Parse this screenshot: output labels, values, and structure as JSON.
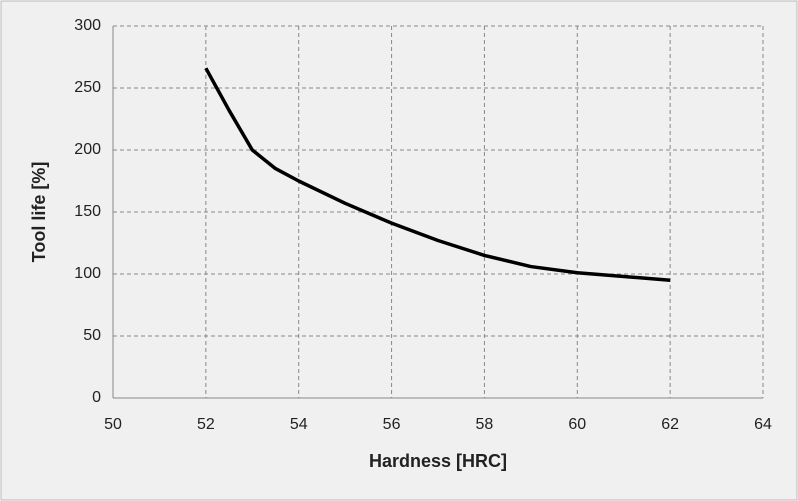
{
  "chart_data": {
    "type": "line",
    "x_label": "Hardness [HRC]",
    "y_label": "Tool life [%]",
    "x": [
      52,
      52.5,
      53,
      53.5,
      54,
      55,
      56,
      57,
      58,
      59,
      60,
      61,
      62
    ],
    "series": [
      {
        "color": "#000000",
        "values": [
          266,
          232,
          200,
          185,
          175,
          157,
          141,
          127,
          115,
          106,
          101,
          98,
          95
        ]
      }
    ],
    "xlim": [
      50,
      64
    ],
    "xticks": [
      50,
      52,
      54,
      56,
      58,
      60,
      62,
      64
    ],
    "ylim": [
      0,
      300
    ],
    "yticks": [
      0,
      50,
      100,
      150,
      200,
      250,
      300
    ],
    "grid": true
  }
}
